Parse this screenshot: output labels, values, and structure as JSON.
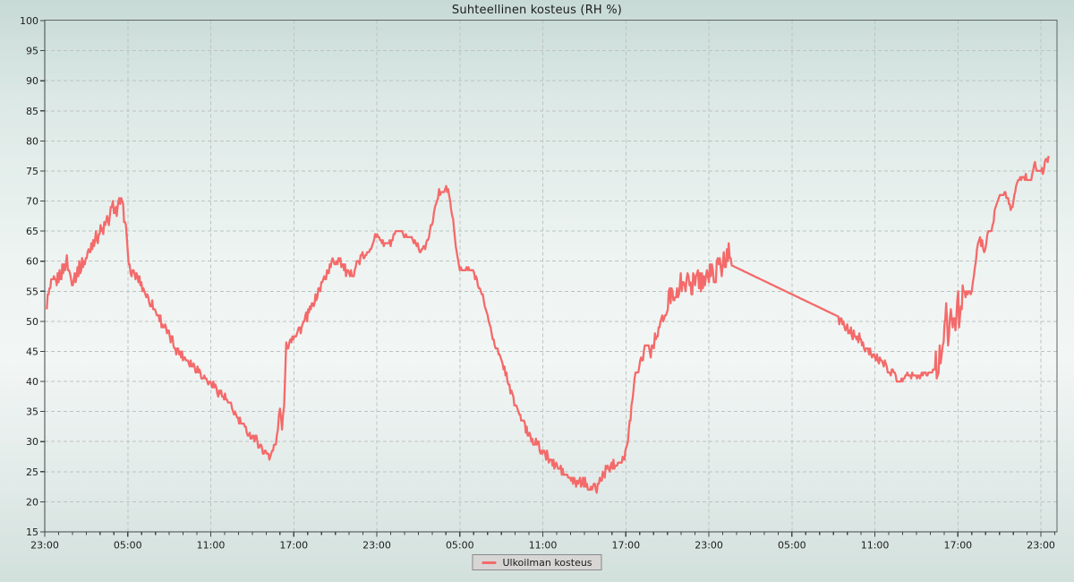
{
  "title": "Suhteellinen kosteus (RH %)",
  "legend": {
    "label": "Ulkoilman kosteus"
  },
  "colors": {
    "series": "#f46a6a",
    "grid": "#bcc3c1",
    "axis": "#3f4745",
    "border": "#5e6664",
    "tick_text": "#1c1c1c",
    "legend_bg": "#d8d5d5",
    "legend_border": "#8a8a8a"
  },
  "chart_data": {
    "type": "line",
    "title": "Suhteellinen kosteus (RH %)",
    "series_name": "Ulkoilman kosteus",
    "ylabel": "",
    "xlabel": "",
    "ylim": [
      15,
      100
    ],
    "y_tick_step": 5,
    "y_tick_labels": [
      "15",
      "20",
      "25",
      "30",
      "35",
      "40",
      "45",
      "50",
      "55",
      "60",
      "65",
      "70",
      "75",
      "80",
      "85",
      "90",
      "95",
      "100"
    ],
    "x_tick_labels": [
      "23:00",
      "05:00",
      "11:00",
      "17:00",
      "23:00",
      "05:00",
      "11:00",
      "17:00",
      "23:00",
      "05:00",
      "11:00",
      "17:00",
      "23:00"
    ],
    "x_major_tick_hours": 6,
    "x_minor_tick_hours": 1,
    "x_total_hours": 73,
    "grid": "dashed",
    "legend_position": "bottom-center",
    "points": [
      [
        0.15,
        53
      ],
      [
        0.4,
        55.5
      ],
      [
        0.8,
        56.5
      ],
      [
        1.2,
        58
      ],
      [
        1.6,
        60
      ],
      [
        1.9,
        57
      ],
      [
        2.3,
        58
      ],
      [
        2.7,
        59.5
      ],
      [
        3.1,
        61
      ],
      [
        3.5,
        63.5
      ],
      [
        3.9,
        64.5
      ],
      [
        4.3,
        65.5
      ],
      [
        4.7,
        67.5
      ],
      [
        5.0,
        69.5
      ],
      [
        5.2,
        68
      ],
      [
        5.45,
        70
      ],
      [
        5.6,
        68.8
      ],
      [
        5.8,
        67.5
      ],
      [
        6.0,
        61
      ],
      [
        6.2,
        58.2
      ],
      [
        6.7,
        57.5
      ],
      [
        7.2,
        55
      ],
      [
        7.7,
        53
      ],
      [
        8.3,
        50.5
      ],
      [
        8.9,
        48
      ],
      [
        9.5,
        45.5
      ],
      [
        10.2,
        43.8
      ],
      [
        10.9,
        42.5
      ],
      [
        11.6,
        40.5
      ],
      [
        12.4,
        38.8
      ],
      [
        13.1,
        37
      ],
      [
        13.9,
        34
      ],
      [
        14.6,
        31.8
      ],
      [
        15.3,
        30.2
      ],
      [
        15.9,
        28.2
      ],
      [
        16.3,
        27.8
      ],
      [
        16.7,
        29.5
      ],
      [
        17.0,
        35.5
      ],
      [
        17.15,
        32.5
      ],
      [
        17.3,
        36
      ],
      [
        17.45,
        46
      ],
      [
        17.9,
        47.5
      ],
      [
        18.5,
        48.8
      ],
      [
        19.1,
        51.5
      ],
      [
        19.7,
        54.5
      ],
      [
        20.2,
        57.2
      ],
      [
        20.8,
        59.8
      ],
      [
        21.3,
        60.6
      ],
      [
        21.7,
        58.5
      ],
      [
        22.0,
        57.4
      ],
      [
        22.4,
        58.8
      ],
      [
        22.9,
        60.6
      ],
      [
        23.3,
        61
      ],
      [
        23.8,
        63.8
      ],
      [
        24.1,
        64.3
      ],
      [
        24.5,
        62.7
      ],
      [
        25.0,
        63
      ],
      [
        25.5,
        64.8
      ],
      [
        26.1,
        64.2
      ],
      [
        26.6,
        63.9
      ],
      [
        27.1,
        62
      ],
      [
        27.5,
        62.3
      ],
      [
        27.9,
        65.5
      ],
      [
        28.2,
        68.5
      ],
      [
        28.5,
        71.5
      ],
      [
        28.8,
        72
      ],
      [
        29.15,
        71.8
      ],
      [
        29.45,
        68
      ],
      [
        29.7,
        62.5
      ],
      [
        30.0,
        58.6
      ],
      [
        30.9,
        58.6
      ],
      [
        31.3,
        56.5
      ],
      [
        31.8,
        52.8
      ],
      [
        32.3,
        48
      ],
      [
        32.8,
        44.5
      ],
      [
        33.3,
        41.5
      ],
      [
        33.8,
        37.5
      ],
      [
        34.3,
        34.5
      ],
      [
        34.9,
        31.5
      ],
      [
        35.5,
        29.8
      ],
      [
        36.1,
        28
      ],
      [
        36.7,
        26.5
      ],
      [
        37.3,
        25.3
      ],
      [
        37.9,
        23.8
      ],
      [
        38.4,
        23
      ],
      [
        38.9,
        23.3
      ],
      [
        39.4,
        22.4
      ],
      [
        39.9,
        22.2
      ],
      [
        40.4,
        24.8
      ],
      [
        40.9,
        26
      ],
      [
        41.5,
        26.8
      ],
      [
        41.9,
        27.3
      ],
      [
        42.15,
        30
      ],
      [
        42.4,
        36
      ],
      [
        42.7,
        41.5
      ],
      [
        43.1,
        43.5
      ],
      [
        43.5,
        46.5
      ],
      [
        43.8,
        44.8
      ],
      [
        44.1,
        47
      ],
      [
        44.5,
        49.8
      ],
      [
        44.9,
        51
      ],
      [
        45.3,
        55.8
      ],
      [
        45.7,
        54
      ],
      [
        46.1,
        57.5
      ],
      [
        46.6,
        55.5
      ],
      [
        47.0,
        57.5
      ],
      [
        47.5,
        56.8
      ],
      [
        48.0,
        57.8
      ],
      [
        48.5,
        58.2
      ],
      [
        49.0,
        59.5
      ],
      [
        49.3,
        60.5
      ],
      [
        49.5,
        62.3
      ],
      [
        49.65,
        59.3
      ],
      [
        57.35,
        50.8
      ],
      [
        57.8,
        49
      ],
      [
        58.4,
        48
      ],
      [
        59.0,
        46.8
      ],
      [
        59.5,
        45.2
      ],
      [
        60.0,
        44.2
      ],
      [
        60.5,
        43
      ],
      [
        61.0,
        42
      ],
      [
        61.5,
        41
      ],
      [
        61.85,
        39.6
      ],
      [
        62.2,
        41.2
      ],
      [
        62.9,
        41.2
      ],
      [
        63.6,
        41.1
      ],
      [
        64.2,
        41.8
      ],
      [
        64.6,
        43.5
      ],
      [
        64.9,
        45.5
      ],
      [
        65.15,
        50.5
      ],
      [
        65.35,
        46.5
      ],
      [
        65.55,
        52.5
      ],
      [
        65.75,
        48
      ],
      [
        65.95,
        54
      ],
      [
        66.15,
        50.5
      ],
      [
        66.4,
        55.3
      ],
      [
        66.7,
        54
      ],
      [
        67.0,
        55.8
      ],
      [
        67.3,
        60.5
      ],
      [
        67.6,
        63.8
      ],
      [
        67.9,
        62
      ],
      [
        68.2,
        64.5
      ],
      [
        68.5,
        66.5
      ],
      [
        68.8,
        69.5
      ],
      [
        69.1,
        71.2
      ],
      [
        69.5,
        71.1
      ],
      [
        69.75,
        69.2
      ],
      [
        69.95,
        69
      ],
      [
        70.2,
        72.5
      ],
      [
        70.5,
        73.8
      ],
      [
        70.9,
        74.1
      ],
      [
        71.3,
        73.3
      ],
      [
        71.5,
        76.4
      ],
      [
        71.7,
        75
      ],
      [
        72.0,
        75
      ],
      [
        72.2,
        75.1
      ],
      [
        72.35,
        77
      ],
      [
        72.55,
        77.2
      ]
    ],
    "noise_segments": [
      [
        0,
        5.9,
        1.3
      ],
      [
        5.9,
        16.9,
        0.8
      ],
      [
        16.9,
        17.5,
        0.4
      ],
      [
        17.5,
        23.0,
        0.9
      ],
      [
        23.0,
        29.3,
        0.5
      ],
      [
        29.3,
        31.0,
        0.3
      ],
      [
        31.0,
        34.5,
        0.6
      ],
      [
        34.5,
        41.9,
        0.8
      ],
      [
        41.9,
        45.0,
        0.9
      ],
      [
        45.0,
        49.64,
        1.9
      ],
      [
        49.64,
        57.36,
        0.0
      ],
      [
        57.36,
        61.9,
        0.8
      ],
      [
        61.9,
        64.4,
        0.5
      ],
      [
        64.4,
        66.5,
        2.6
      ],
      [
        66.5,
        68.9,
        0.9
      ],
      [
        68.9,
        72.6,
        0.5
      ]
    ],
    "value_quantize_step": 0.5
  }
}
